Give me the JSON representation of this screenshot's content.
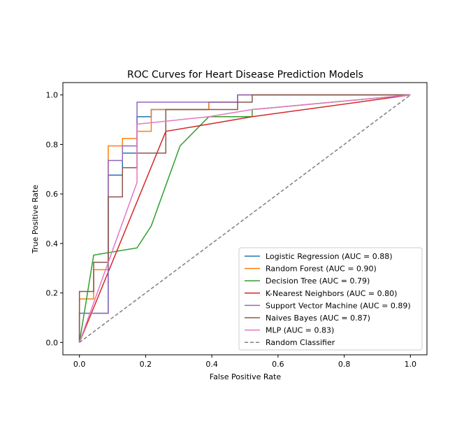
{
  "chart_data": {
    "type": "line",
    "title": "ROC Curves for Heart Disease Prediction Models",
    "xlabel": "False Positive Rate",
    "ylabel": "True Positive Rate",
    "xlim": [
      -0.05,
      1.05
    ],
    "ylim": [
      -0.05,
      1.05
    ],
    "x_ticks": [
      0.0,
      0.2,
      0.4,
      0.6,
      0.8,
      1.0
    ],
    "y_ticks": [
      0.0,
      0.2,
      0.4,
      0.6,
      0.8,
      1.0
    ],
    "x_tick_labels": [
      "0.0",
      "0.2",
      "0.4",
      "0.6",
      "0.8",
      "1.0"
    ],
    "y_tick_labels": [
      "0.0",
      "0.2",
      "0.4",
      "0.6",
      "0.8",
      "1.0"
    ],
    "grid": false,
    "legend_position": "lower-right",
    "series": [
      {
        "name": "Logistic Regression (AUC = 0.88)",
        "color": "#1f77b4",
        "style": "solid",
        "points": [
          [
            0,
            0
          ],
          [
            0,
            0.118
          ],
          [
            0.087,
            0.118
          ],
          [
            0.087,
            0.676
          ],
          [
            0.13,
            0.676
          ],
          [
            0.13,
            0.765
          ],
          [
            0.174,
            0.765
          ],
          [
            0.174,
            0.912
          ],
          [
            0.217,
            0.912
          ],
          [
            0.217,
            0.941
          ],
          [
            0.391,
            0.941
          ],
          [
            0.391,
            0.971
          ],
          [
            0.478,
            0.971
          ],
          [
            0.478,
            1.0
          ],
          [
            1,
            1
          ]
        ]
      },
      {
        "name": "Random Forest (AUC = 0.90)",
        "color": "#ff7f0e",
        "style": "solid",
        "points": [
          [
            0,
            0
          ],
          [
            0,
            0.176
          ],
          [
            0.043,
            0.176
          ],
          [
            0.043,
            0.294
          ],
          [
            0.087,
            0.294
          ],
          [
            0.087,
            0.794
          ],
          [
            0.13,
            0.794
          ],
          [
            0.13,
            0.824
          ],
          [
            0.174,
            0.824
          ],
          [
            0.174,
            0.853
          ],
          [
            0.217,
            0.853
          ],
          [
            0.217,
            0.941
          ],
          [
            0.391,
            0.941
          ],
          [
            0.391,
            0.971
          ],
          [
            0.478,
            0.971
          ],
          [
            0.478,
            1.0
          ],
          [
            1,
            1
          ]
        ]
      },
      {
        "name": "Decision Tree (AUC = 0.79)",
        "color": "#2ca02c",
        "style": "solid",
        "points": [
          [
            0,
            0
          ],
          [
            0.043,
            0.353
          ],
          [
            0.174,
            0.382
          ],
          [
            0.217,
            0.471
          ],
          [
            0.304,
            0.794
          ],
          [
            0.391,
            0.912
          ],
          [
            0.522,
            0.912
          ],
          [
            0.522,
            0.941
          ],
          [
            1,
            1
          ]
        ]
      },
      {
        "name": "K-Nearest Neighbors (AUC = 0.80)",
        "color": "#d62728",
        "style": "solid",
        "points": [
          [
            0,
            0
          ],
          [
            0.261,
            0.853
          ],
          [
            0.391,
            0.882
          ],
          [
            0.522,
            0.912
          ],
          [
            1,
            1
          ]
        ]
      },
      {
        "name": "Support Vector Machine (AUC = 0.89)",
        "color": "#9467bd",
        "style": "solid",
        "points": [
          [
            0,
            0
          ],
          [
            0,
            0.118
          ],
          [
            0.087,
            0.118
          ],
          [
            0.087,
            0.735
          ],
          [
            0.13,
            0.735
          ],
          [
            0.13,
            0.794
          ],
          [
            0.174,
            0.794
          ],
          [
            0.174,
            0.971
          ],
          [
            0.478,
            0.971
          ],
          [
            0.478,
            1.0
          ],
          [
            1,
            1
          ]
        ]
      },
      {
        "name": "Naives Bayes (AUC = 0.87)",
        "color": "#8c564b",
        "style": "solid",
        "points": [
          [
            0,
            0
          ],
          [
            0,
            0.206
          ],
          [
            0.043,
            0.206
          ],
          [
            0.043,
            0.324
          ],
          [
            0.087,
            0.324
          ],
          [
            0.087,
            0.588
          ],
          [
            0.13,
            0.588
          ],
          [
            0.13,
            0.706
          ],
          [
            0.174,
            0.706
          ],
          [
            0.174,
            0.765
          ],
          [
            0.261,
            0.765
          ],
          [
            0.261,
            0.941
          ],
          [
            0.478,
            0.941
          ],
          [
            0.478,
            0.971
          ],
          [
            0.522,
            0.971
          ],
          [
            0.522,
            1.0
          ],
          [
            1,
            1
          ]
        ]
      },
      {
        "name": "MLP (AUC = 0.83)",
        "color": "#e377c2",
        "style": "solid",
        "points": [
          [
            0,
            0
          ],
          [
            0.174,
            0.647
          ],
          [
            0.174,
            0.882
          ],
          [
            0.391,
            0.912
          ],
          [
            0.522,
            0.941
          ],
          [
            1,
            1
          ]
        ]
      },
      {
        "name": "Random Classifier",
        "color": "#7f7f7f",
        "style": "dashed",
        "points": [
          [
            0,
            0
          ],
          [
            1,
            1
          ]
        ]
      }
    ]
  }
}
